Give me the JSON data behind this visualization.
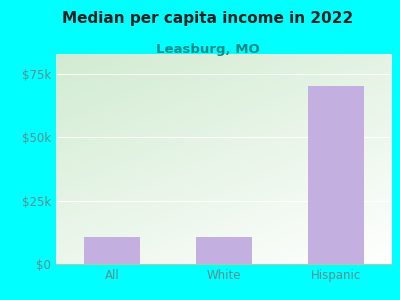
{
  "title": "Median per capita income in 2022",
  "subtitle": "Leasburg, MO",
  "categories": [
    "All",
    "White",
    "Hispanic"
  ],
  "values": [
    10500,
    10500,
    70500
  ],
  "bar_color": "#c4b0e0",
  "background_color": "#00FFFF",
  "plot_bg_color_top_left": "#d4ecd4",
  "plot_bg_color_bottom_right": "#f8f8ff",
  "title_color": "#222222",
  "subtitle_color": "#008B8B",
  "axis_label_color": "#5a9090",
  "yticks": [
    0,
    25000,
    50000,
    75000
  ],
  "ytick_labels": [
    "$0",
    "$25k",
    "$50k",
    "$75k"
  ],
  "ylim": [
    0,
    83000
  ],
  "grid_color": "#e0e8e0"
}
